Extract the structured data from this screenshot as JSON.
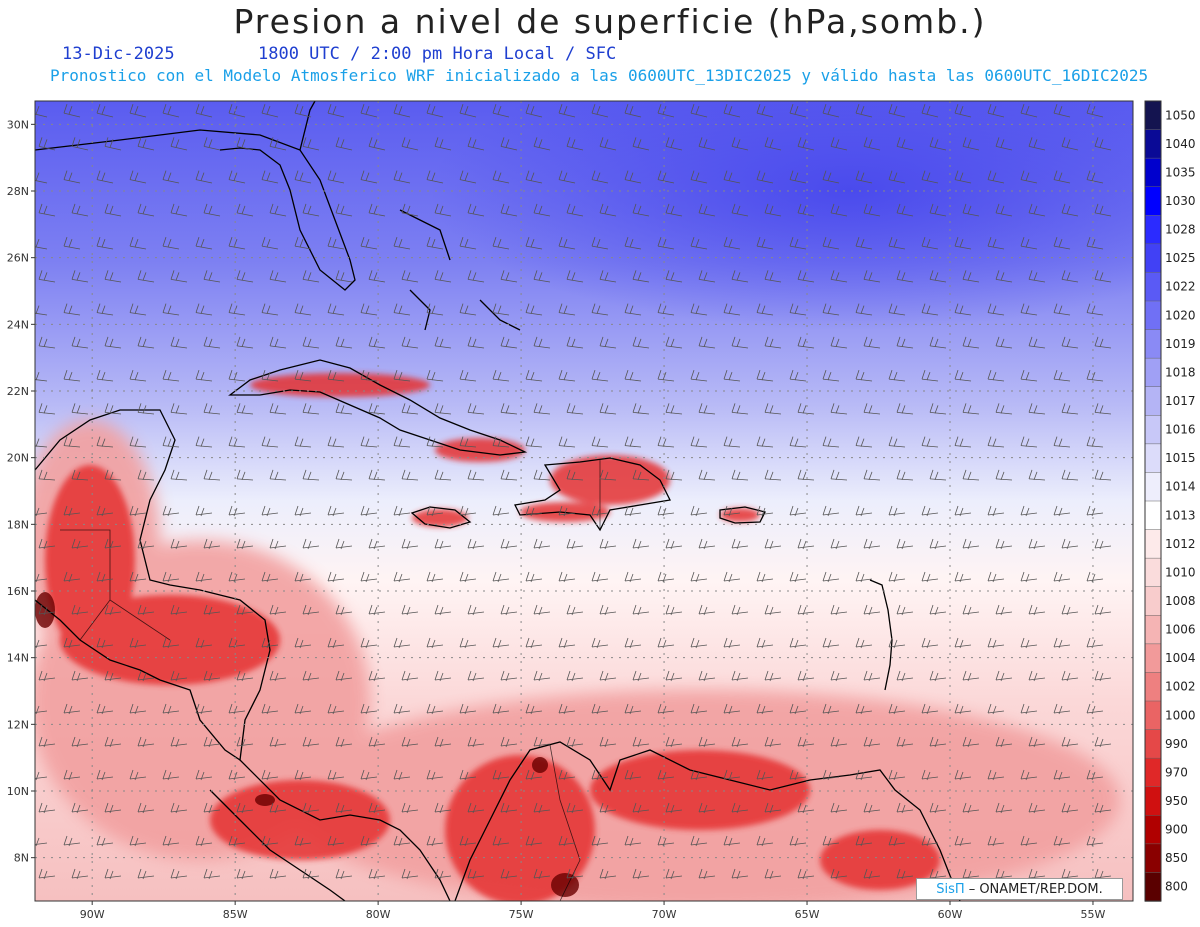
{
  "title": "Presion a nivel de superficie (hPa,somb.)",
  "date": "13-Dic-2025",
  "time": "1800 UTC / 2:00 pm Hora Local / SFC",
  "subtitle": "Pronostico con el Modelo Atmosferico WRF inicializado a las 0600UTC_13DIC2025 y válido hasta las  0600UTC_16DIC2025",
  "lat_ticks": [
    "30N",
    "28N",
    "26N",
    "24N",
    "22N",
    "20N",
    "18N",
    "16N",
    "14N",
    "12N",
    "10N",
    "8N"
  ],
  "lat_values": [
    30,
    28,
    26,
    24,
    22,
    20,
    18,
    16,
    14,
    12,
    10,
    8
  ],
  "lon_ticks": [
    "90W",
    "85W",
    "80W",
    "75W",
    "70W",
    "65W",
    "60W",
    "55W"
  ],
  "lon_values": [
    -90,
    -85,
    -80,
    -75,
    -70,
    -65,
    -60,
    -55
  ],
  "extent": {
    "lon_min": -92,
    "lon_max": -53.6,
    "lat_min": 6.7,
    "lat_max": 30.7
  },
  "colorbar": {
    "levels": [
      "1050",
      "1040",
      "1035",
      "1030",
      "1028",
      "1025",
      "1022",
      "1020",
      "1019",
      "1018",
      "1017",
      "1016",
      "1015",
      "1014",
      "1013",
      "1012",
      "1010",
      "1008",
      "1006",
      "1004",
      "1002",
      "1000",
      "990",
      "970",
      "950",
      "900",
      "850",
      "800"
    ],
    "colors": [
      "#141450",
      "#0a0a96",
      "#0000cd",
      "#0000ff",
      "#2b2bff",
      "#4141f5",
      "#5a5af5",
      "#7070f5",
      "#8a8af5",
      "#a0a0f5",
      "#b4b4f5",
      "#c8c8f8",
      "#dcdcfa",
      "#eeeefc",
      "#ffffff",
      "#fdeaea",
      "#fadcdc",
      "#f8cccc",
      "#f5b4b4",
      "#f29a9a",
      "#ee8080",
      "#ea6464",
      "#e54848",
      "#e02828",
      "#d01010",
      "#b00000",
      "#8a0000",
      "#5a0000"
    ]
  },
  "credit": {
    "brand": "SisΠ",
    "text": "– ONAMET/REP.DOM."
  },
  "colors": {
    "high": "#4a52ee",
    "low": "#e02020",
    "neutral": "#ffffff"
  }
}
